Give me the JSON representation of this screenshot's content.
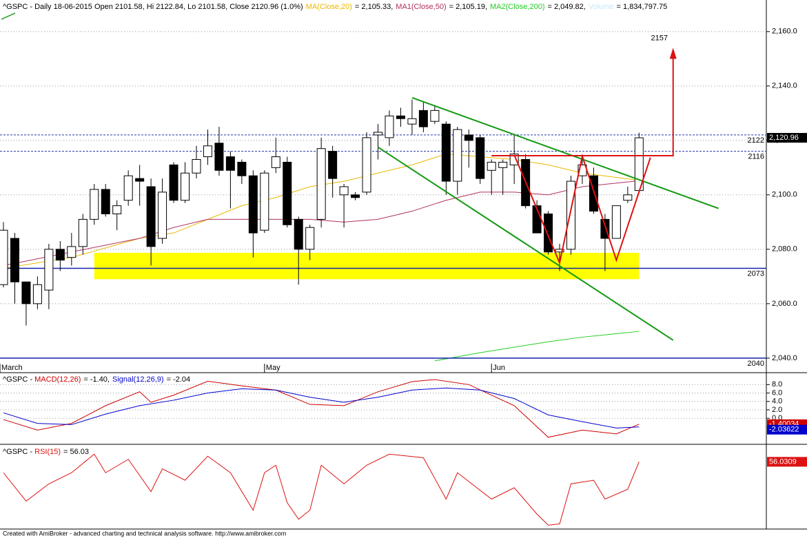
{
  "chart_data": [
    {
      "type": "candlestick",
      "title": "^GSPC - Daily 18-06-2015 Open 2101.58, Hi 2122.84, Lo 2101.58, Close 2120.96 (1.0%)",
      "open": [
        2067,
        2084,
        2068,
        2060,
        2065,
        2080,
        2077,
        2081,
        2091,
        2102,
        2093,
        2098,
        2106,
        2103,
        2084,
        2111,
        2098,
        2108,
        2114,
        2119,
        2114,
        2112,
        2107,
        2087,
        2110,
        2112,
        2091,
        2080,
        2091,
        2116,
        2100,
        2100,
        2101,
        2122,
        2121,
        2129,
        2126,
        2131,
        2127,
        2126,
        2105,
        2122,
        2121,
        2109,
        2110,
        2111,
        2113,
        2096,
        2093,
        2079,
        2080,
        2107,
        2107,
        2091,
        2084,
        2098,
        2101.58
      ],
      "high": [
        2090,
        2086,
        2068,
        2070,
        2082,
        2083,
        2086,
        2093,
        2104,
        2104,
        2098,
        2109,
        2111,
        2106,
        2106,
        2112,
        2112,
        2118,
        2124,
        2125,
        2116,
        2113,
        2109,
        2109,
        2121,
        2114,
        2092,
        2089,
        2121,
        2118,
        2104,
        2101,
        2123,
        2126,
        2131,
        2132,
        2135,
        2134,
        2133,
        2127,
        2125,
        2124,
        2122,
        2113,
        2113,
        2122,
        2115,
        2098,
        2094,
        2082,
        2107,
        2114,
        2110,
        2093,
        2096,
        2103,
        2122.84
      ],
      "low": [
        2066,
        2060,
        2052,
        2058,
        2058,
        2072,
        2074,
        2078,
        2089,
        2092,
        2087,
        2096,
        2096,
        2074,
        2082,
        2097,
        2097,
        2106,
        2111,
        2107,
        2095,
        2104,
        2077,
        2086,
        2108,
        2088,
        2067,
        2076,
        2088,
        2099,
        2088,
        2098,
        2100,
        2113,
        2118,
        2125,
        2122,
        2123,
        2126,
        2100,
        2100,
        2110,
        2104,
        2100,
        2100,
        2104,
        2095,
        2086,
        2078,
        2072,
        2078,
        2104,
        2093,
        2072,
        2084,
        2097,
        2101.58
      ],
      "close": [
        2087,
        2068,
        2060,
        2067,
        2080,
        2076,
        2081,
        2091,
        2102,
        2093,
        2096,
        2107,
        2105,
        2081,
        2101,
        2098,
        2108,
        2113,
        2118,
        2109,
        2109,
        2107,
        2086,
        2108,
        2114,
        2089,
        2080,
        2088,
        2117,
        2106,
        2103,
        2099,
        2121,
        2123,
        2129,
        2128,
        2128,
        2125,
        2131,
        2105,
        2124,
        2120,
        2106,
        2112,
        2112,
        2115,
        2096,
        2086,
        2079,
        2080,
        2105,
        2111,
        2094,
        2084,
        2096,
        2100,
        2120.96
      ],
      "last_label": "2,120.96",
      "xticks": [
        {
          "value": 0,
          "label": "March"
        },
        {
          "value": 23,
          "label": "May"
        },
        {
          "value": 43,
          "label": "Jun"
        }
      ],
      "ylim": [
        2034.9,
        2171.6
      ],
      "yticks": [
        {
          "value": 2040,
          "label": "2,040.0"
        },
        {
          "value": 2060,
          "label": "2,060.0"
        },
        {
          "value": 2080,
          "label": "2,080.0"
        },
        {
          "value": 2100,
          "label": "2,100.0"
        },
        {
          "value": 2120,
          "label": "2,120.0"
        },
        {
          "value": 2140,
          "label": "2,140.0"
        },
        {
          "value": 2160,
          "label": "2,160.0"
        }
      ],
      "grid": true,
      "series": [
        {
          "name": "MA(Close,20)",
          "color": "#e8b800",
          "value_label": "= 2,105.33,",
          "x": [
            0,
            6,
            12,
            15,
            18,
            21,
            24,
            27,
            30,
            33,
            36,
            39,
            42,
            45,
            48,
            51,
            56
          ],
          "values": [
            2073,
            2077,
            2084,
            2086,
            2091,
            2096,
            2099,
            2103,
            2105,
            2108,
            2111,
            2115,
            2114,
            2113,
            2111,
            2108,
            2105.33
          ]
        },
        {
          "name": "MA1(Close,50)",
          "color": "#b03060",
          "value_label": "= 2,105.19,",
          "x": [
            0,
            6,
            12,
            15,
            18,
            21,
            24,
            27,
            30,
            33,
            36,
            39,
            42,
            45,
            48,
            51,
            56
          ],
          "values": [
            2074,
            2079,
            2084,
            2088,
            2091,
            2091,
            2091,
            2091,
            2090,
            2091,
            2094,
            2098,
            2101,
            2101,
            2100,
            2103,
            2105.19
          ]
        },
        {
          "name": "MA2(Close,200)",
          "color": "#22cc22",
          "value_label": "= 2,049.82,",
          "x": [
            38,
            42,
            45,
            48,
            51,
            56
          ],
          "values": [
            2039,
            2042,
            2044,
            2046,
            2047.7,
            2049.82
          ]
        }
      ],
      "volume": {
        "name": "Volume",
        "color": "#c8e8f4",
        "value_label": "= 1,834,797.75"
      },
      "zone": {
        "from": 2069,
        "to": 2078.7,
        "x": [
          8,
          56
        ],
        "color": "#ffff00"
      },
      "levels": [
        {
          "value": 2122,
          "label": "2122",
          "style": "dashed"
        },
        {
          "value": 2116,
          "label": "2116",
          "style": "dashed"
        },
        {
          "value": 2073,
          "label": "2073",
          "style": "solid"
        },
        {
          "value": 2040,
          "label": "2040",
          "style": "solid"
        }
      ],
      "trendlines": [
        {
          "color": "#119911",
          "x": [
            36,
            63
          ],
          "values": [
            2135.7,
            2095
          ]
        },
        {
          "color": "#119911",
          "x": [
            33,
            59
          ],
          "values": [
            2117.5,
            2046.6
          ]
        }
      ],
      "pattern": {
        "color": "#dd1111",
        "x": [
          45,
          49,
          51,
          54,
          57
        ],
        "values": [
          2114.7,
          2075,
          2114.2,
          2076,
          2113.7
        ]
      },
      "target": {
        "color": "#dd1111",
        "x": [
          43,
          59,
          59
        ],
        "values": [
          2114.4,
          2114.4,
          2151
        ],
        "label": "2157"
      }
    },
    {
      "type": "line",
      "title": "^GSPC - ",
      "ylim": [
        -6.17,
        10.5
      ],
      "yticks": [
        {
          "value": 0,
          "label": "0.0"
        },
        {
          "value": 2,
          "label": "2.0"
        },
        {
          "value": 4,
          "label": "4.0"
        },
        {
          "value": 6,
          "label": "6.0"
        },
        {
          "value": 8,
          "label": "8.0"
        }
      ],
      "series": [
        {
          "name": "MACD(12,26)",
          "color": "#cc0000",
          "value_label": "= -1.40,",
          "last_label": "-1.40034",
          "x": [
            0,
            3,
            6,
            9,
            12,
            13,
            15,
            18,
            21,
            24,
            27,
            30,
            33,
            36,
            38,
            41,
            45,
            48,
            51,
            54,
            56
          ],
          "values": [
            -0.3,
            -2.8,
            -1.2,
            3,
            6.3,
            3.8,
            5.5,
            8.8,
            7.7,
            6.7,
            3.3,
            3,
            6.3,
            8.7,
            9.2,
            8,
            3,
            -4.5,
            -2.8,
            -3.7,
            -1.4
          ]
        },
        {
          "name": "Signal(12,26,9)",
          "color": "#0000cc",
          "value_label": "= -2.04",
          "last_label": "-2.03622",
          "x": [
            0,
            3,
            6,
            9,
            12,
            15,
            18,
            21,
            24,
            27,
            30,
            33,
            36,
            39,
            42,
            45,
            48,
            51,
            54,
            56
          ],
          "values": [
            1.3,
            -1.2,
            -1.5,
            1,
            3,
            4.3,
            6,
            7,
            6.7,
            5,
            3.8,
            5,
            6.7,
            7.2,
            6.7,
            4.7,
            0.8,
            -0.8,
            -2.3,
            -2.04
          ]
        }
      ]
    },
    {
      "type": "line",
      "title": "^GSPC - ",
      "ylim": [
        30,
        62
      ],
      "series": [
        {
          "name": "RSI(15)",
          "color": "#dd1111",
          "value_label": "= 56.03",
          "last_label": "56.0309",
          "x": [
            0,
            2,
            4,
            6,
            8,
            9,
            11,
            13,
            14,
            16,
            18,
            20,
            22,
            23,
            24,
            25,
            26,
            27,
            28,
            30,
            32,
            34,
            37,
            39,
            40,
            43,
            45,
            47,
            48,
            49,
            50,
            52,
            53,
            55,
            56
          ],
          "values": [
            51.8,
            40.8,
            47.5,
            51.8,
            59,
            51.8,
            57,
            44.5,
            53.3,
            48.9,
            58.2,
            51.8,
            37.3,
            51.8,
            54.7,
            40.2,
            33.8,
            37.3,
            54.7,
            47.5,
            54.7,
            59,
            57.6,
            41.6,
            51.8,
            41.6,
            46,
            35.8,
            31.5,
            32,
            47.5,
            48.9,
            41.6,
            45.4,
            56.03
          ]
        }
      ]
    }
  ],
  "footer": "Created with AmiBroker - advanced charting and technical analysis software. http://www.amibroker.com"
}
